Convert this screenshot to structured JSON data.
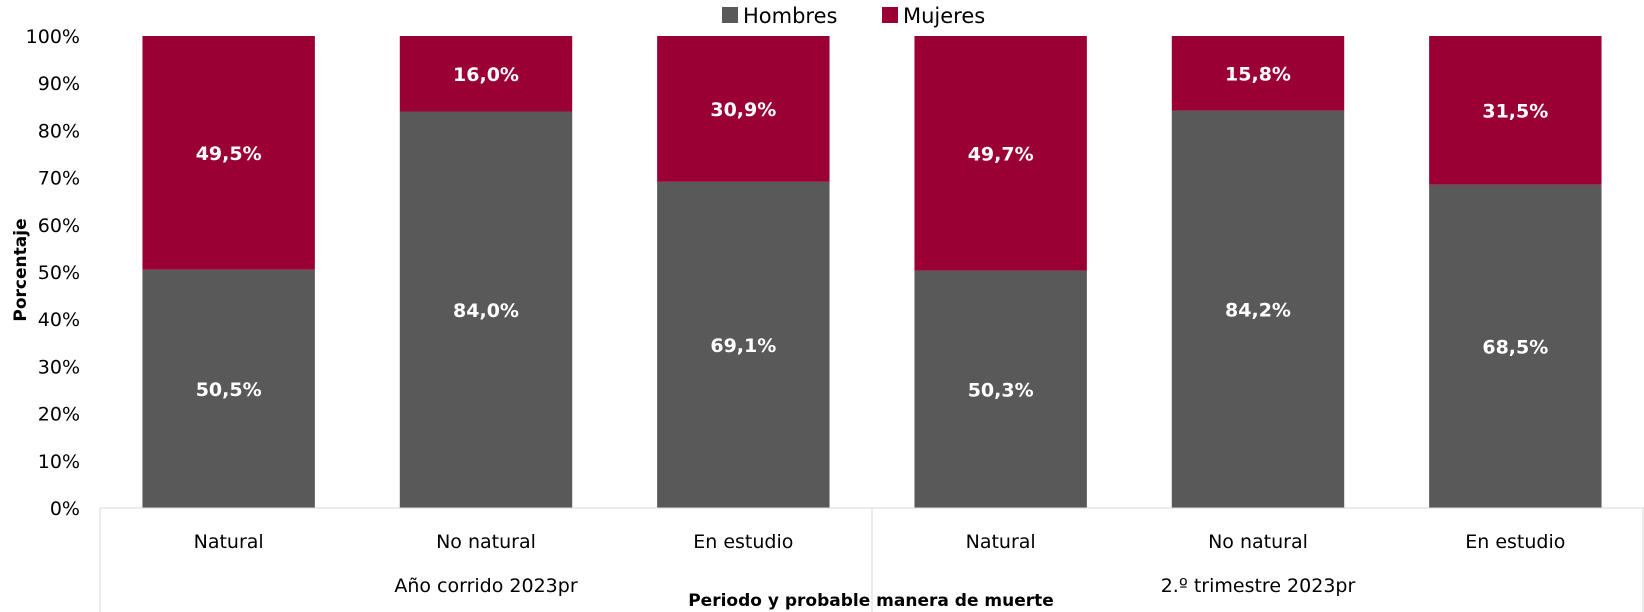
{
  "chart_data": {
    "type": "bar",
    "stacked": true,
    "groups": [
      {
        "label": "Año corrido 2023pr",
        "categories": [
          "Natural",
          "No natural",
          "En estudio"
        ]
      },
      {
        "label": "2.º trimestre 2023pr",
        "categories": [
          "Natural",
          "No natural",
          "En estudio"
        ]
      }
    ],
    "series": [
      {
        "name": "Hombres",
        "color": "#595959",
        "values": [
          50.5,
          84.0,
          69.1,
          50.3,
          84.2,
          68.5
        ],
        "labels": [
          "50,5%",
          "84,0%",
          "69,1%",
          "50,3%",
          "84,2%",
          "68,5%"
        ]
      },
      {
        "name": "Mujeres",
        "color": "#9b0035",
        "values": [
          49.5,
          16.0,
          30.9,
          49.7,
          15.8,
          31.5
        ],
        "labels": [
          "49,5%",
          "16,0%",
          "30,9%",
          "49,7%",
          "15,8%",
          "31,5%"
        ]
      }
    ],
    "ylabel": "Porcentaje",
    "xlabel": "Periodo y probable manera de muerte",
    "ylim": [
      0,
      100
    ],
    "yticks": [
      "0%",
      "10%",
      "20%",
      "30%",
      "40%",
      "50%",
      "60%",
      "70%",
      "80%",
      "90%",
      "100%"
    ],
    "legend_position": "top-center",
    "grid": false
  }
}
